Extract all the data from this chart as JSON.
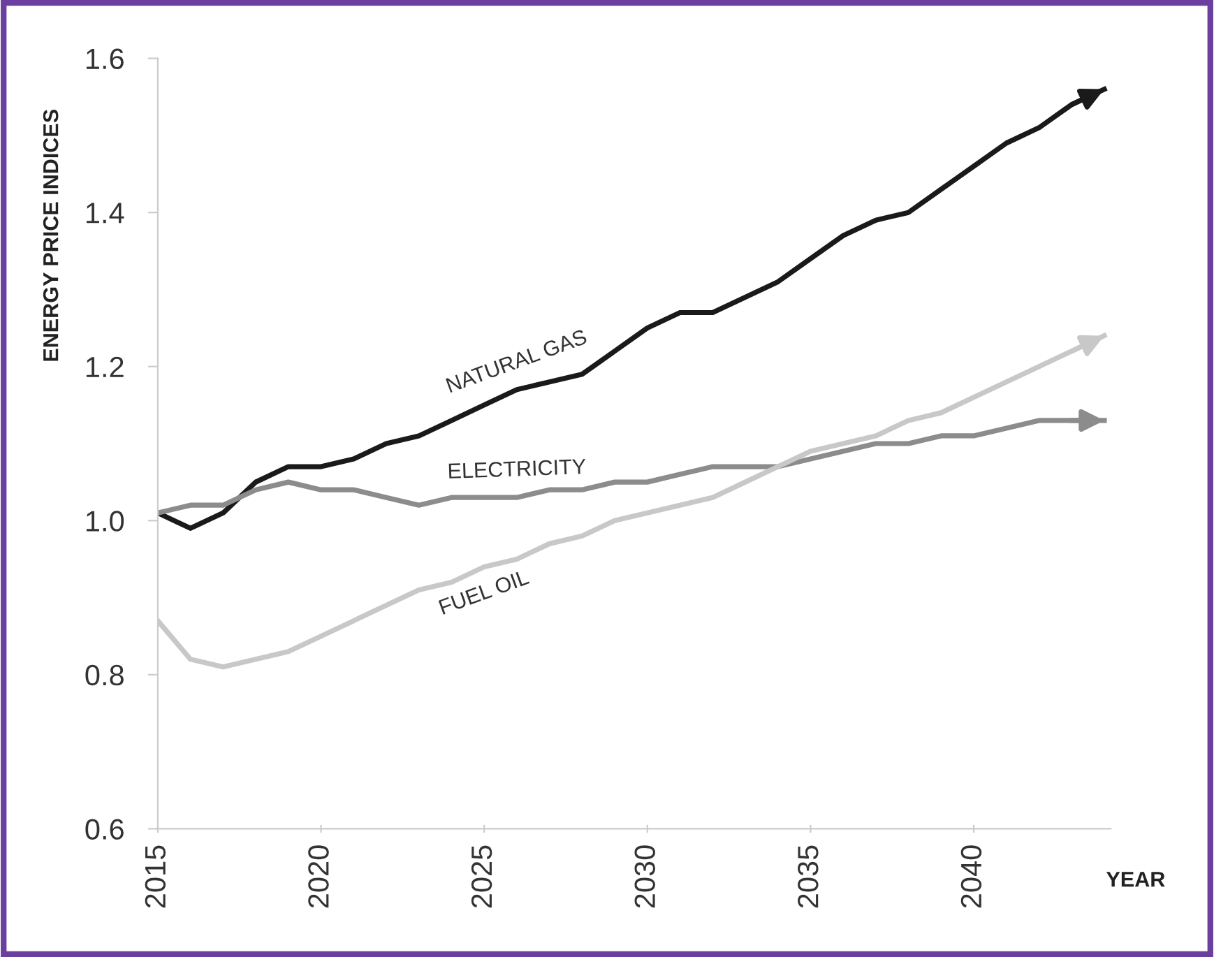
{
  "chart_data": {
    "type": "line",
    "ylabel": "ENERGY PRICE INDICES",
    "xlabel": "YEAR",
    "x": [
      2015,
      2016,
      2017,
      2018,
      2019,
      2020,
      2021,
      2022,
      2023,
      2024,
      2025,
      2026,
      2027,
      2028,
      2029,
      2030,
      2031,
      2032,
      2033,
      2034,
      2035,
      2036,
      2037,
      2038,
      2039,
      2040,
      2041,
      2042,
      2043,
      2044
    ],
    "series": [
      {
        "name": "NATURAL GAS",
        "color": "#1a1a1a",
        "values": [
          1.01,
          0.99,
          1.01,
          1.05,
          1.07,
          1.07,
          1.08,
          1.1,
          1.11,
          1.13,
          1.15,
          1.17,
          1.18,
          1.19,
          1.22,
          1.25,
          1.27,
          1.27,
          1.29,
          1.31,
          1.34,
          1.37,
          1.39,
          1.4,
          1.43,
          1.46,
          1.49,
          1.51,
          1.54,
          1.56
        ]
      },
      {
        "name": "ELECTRICITY",
        "color": "#8c8c8c",
        "values": [
          1.01,
          1.02,
          1.02,
          1.04,
          1.05,
          1.04,
          1.04,
          1.03,
          1.02,
          1.03,
          1.03,
          1.03,
          1.04,
          1.04,
          1.05,
          1.05,
          1.06,
          1.07,
          1.07,
          1.07,
          1.08,
          1.09,
          1.1,
          1.1,
          1.11,
          1.11,
          1.12,
          1.13,
          1.13,
          1.13
        ]
      },
      {
        "name": "FUEL OIL",
        "color": "#c8c8c8",
        "values": [
          0.87,
          0.82,
          0.81,
          0.82,
          0.83,
          0.85,
          0.87,
          0.89,
          0.91,
          0.92,
          0.94,
          0.95,
          0.97,
          0.98,
          1.0,
          1.01,
          1.02,
          1.03,
          1.05,
          1.07,
          1.09,
          1.1,
          1.11,
          1.13,
          1.14,
          1.16,
          1.18,
          1.2,
          1.22,
          1.24
        ]
      }
    ],
    "xlim": [
      2015,
      2044.2
    ],
    "xticks": [
      2015,
      2020,
      2025,
      2030,
      2035,
      2040
    ],
    "ylim": [
      0.6,
      1.6
    ],
    "yticks": [
      {
        "value": 0.6,
        "label": "0.6"
      },
      {
        "value": 0.8,
        "label": "0.8"
      },
      {
        "value": 1.0,
        "label": "1.0"
      },
      {
        "value": 1.2,
        "label": "1.2"
      },
      {
        "value": 1.4,
        "label": "1.4"
      },
      {
        "value": 1.6,
        "label": "1.6"
      }
    ],
    "grid": false,
    "legend": false,
    "marker": "none",
    "line_style": "solid"
  }
}
